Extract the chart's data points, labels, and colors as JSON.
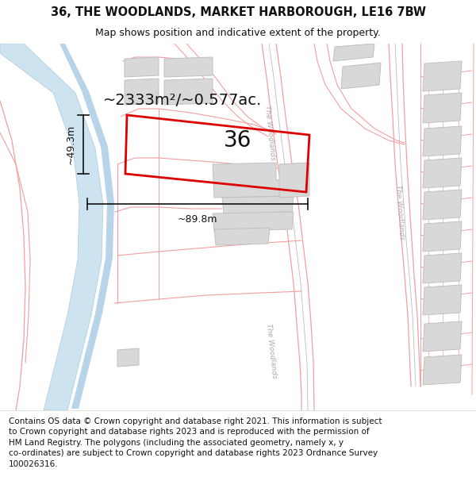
{
  "title": "36, THE WOODLANDS, MARKET HARBOROUGH, LE16 7BW",
  "subtitle": "Map shows position and indicative extent of the property.",
  "footer": "Contains OS data © Crown copyright and database right 2021. This information is subject\nto Crown copyright and database rights 2023 and is reproduced with the permission of\nHM Land Registry. The polygons (including the associated geometry, namely x, y\nco-ordinates) are subject to Crown copyright and database rights 2023 Ordnance Survey\n100026316.",
  "area_label": "~2333m²/~0.577ac.",
  "width_label": "~89.8m",
  "height_label": "~49.3m",
  "number_label": "36",
  "bg": "#ffffff",
  "map_bg": "#ffffff",
  "water_fill": "#cde4f0",
  "water_edge": "#aac8e0",
  "road_line": "#f0a0a0",
  "road_line2": "#e8b0b0",
  "bld_fill": "#d8d8d8",
  "bld_edge": "#c0c0c0",
  "red": "#dd0000",
  "dim_c": "#111111",
  "txt_c": "#111111",
  "road_lbl": "#aaaaaa",
  "title_fs": 10.5,
  "sub_fs": 9,
  "footer_fs": 7.5,
  "area_fs": 14,
  "num_fs": 20,
  "dim_fs": 9,
  "road_lw": 0.8
}
